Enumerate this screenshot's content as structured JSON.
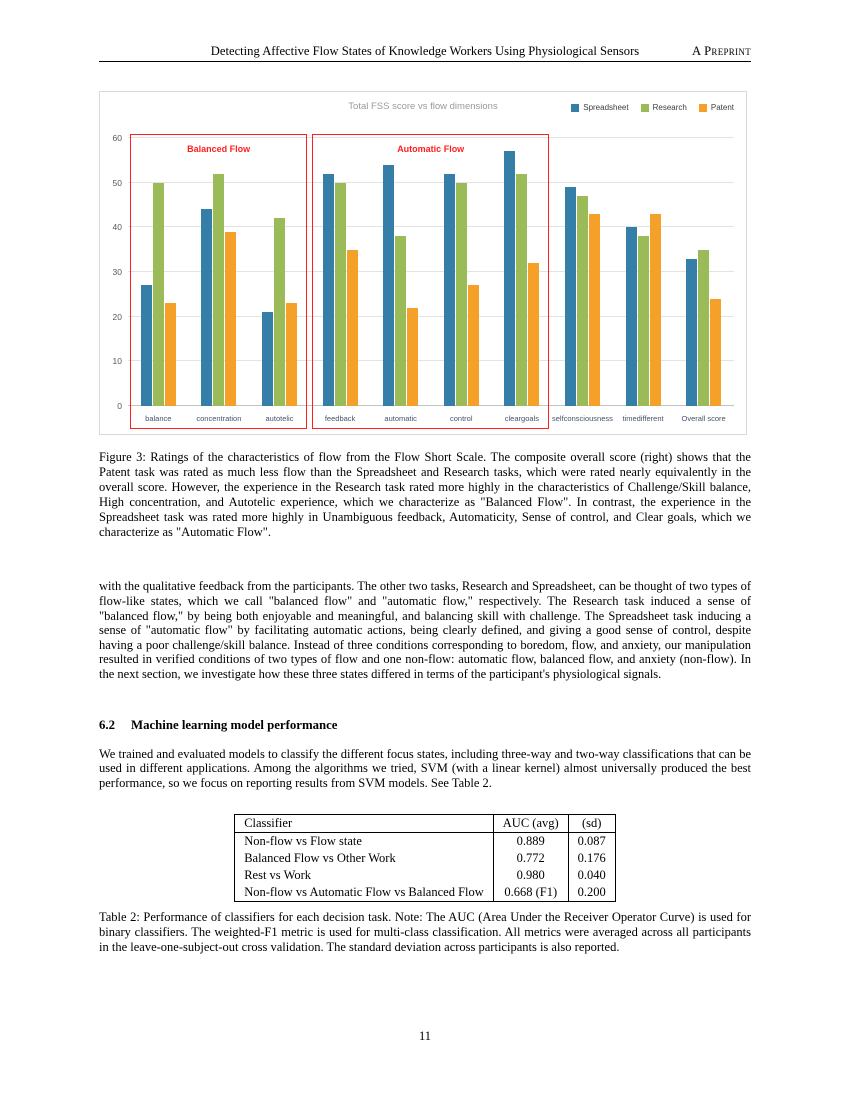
{
  "header": {
    "title": "Detecting Affective Flow States of Knowledge Workers Using Physiological Sensors",
    "tag": "A Preprint"
  },
  "chart_data": {
    "type": "bar",
    "title": "Total FSS score vs flow dimensions",
    "categories": [
      "balance",
      "concentration",
      "autotelic",
      "feedback",
      "automatic",
      "control",
      "cleargoals",
      "selfconsciousness",
      "timedifferent",
      "Overall score"
    ],
    "series": [
      {
        "name": "Spreadsheet",
        "color": "#357ea8",
        "values": [
          27,
          44,
          21,
          52,
          54,
          52,
          57,
          49,
          40,
          33
        ]
      },
      {
        "name": "Research",
        "color": "#9bbb59",
        "values": [
          50,
          52,
          42,
          50,
          38,
          50,
          52,
          47,
          38,
          35
        ]
      },
      {
        "name": "Patent",
        "color": "#f5a028",
        "values": [
          23,
          39,
          23,
          35,
          22,
          27,
          32,
          43,
          43,
          24
        ]
      }
    ],
    "ylim": [
      0,
      60
    ],
    "yticks": [
      0,
      10,
      20,
      30,
      40,
      50,
      60
    ],
    "grid": true,
    "legend_position": "top-right",
    "annotations": [
      {
        "label": "Balanced Flow",
        "color": "#ff1f1f",
        "group_start": 0,
        "group_end": 2
      },
      {
        "label": "Automatic Flow",
        "color": "#ff1f1f",
        "group_start": 3,
        "group_end": 6
      }
    ]
  },
  "figure3_caption": "Figure 3: Ratings of the characteristics of flow from the Flow Short Scale. The composite overall score (right) shows that the Patent task was rated as much less flow than the Spreadsheet and Research tasks, which were rated nearly equivalently in the overall score. However, the experience in the Research task rated more highly in the characteristics of Challenge/Skill balance, High concentration, and Autotelic experience, which we characterize as \"Balanced Flow\". In contrast, the experience in the Spreadsheet task was rated more highly in Unambiguous feedback, Automaticity, Sense of control, and Clear goals, which we characterize as \"Automatic Flow\".",
  "paragraph_1": "with the qualitative feedback from the participants. The other two tasks, Research and Spreadsheet, can be thought of two types of flow-like states, which we call \"balanced flow\" and \"automatic flow,\" respectively. The Research task induced a sense of \"balanced flow,\" by being both enjoyable and meaningful, and balancing skill with challenge. The Spreadsheet task inducing a sense of \"automatic flow\" by facilitating automatic actions, being clearly defined, and giving a good sense of control, despite having a poor challenge/skill balance. Instead of three conditions corresponding to boredom, flow, and anxiety, our manipulation resulted in verified conditions of two types of flow and one non-flow: automatic flow, balanced flow, and anxiety (non-flow). In the next section, we investigate how these three states differed in terms of the participant's physiological signals.",
  "section": {
    "number": "6.2",
    "title": "Machine learning model performance"
  },
  "paragraph_2": "We trained and evaluated models to classify the different focus states, including three-way and two-way classifications that can be used in different applications. Among the algorithms we tried, SVM (with a linear kernel) almost universally produced the best performance, so we focus on reporting results from SVM models. See Table 2.",
  "table2": {
    "headers": [
      "Classifier",
      "AUC (avg)",
      "(sd)"
    ],
    "rows": [
      [
        "Non-flow vs Flow state",
        "0.889",
        "0.087"
      ],
      [
        "Balanced Flow vs Other Work",
        "0.772",
        "0.176"
      ],
      [
        "Rest vs Work",
        "0.980",
        "0.040"
      ],
      [
        "Non-flow vs Automatic Flow vs Balanced Flow",
        "0.668 (F1)",
        "0.200"
      ]
    ]
  },
  "table2_caption": "Table 2: Performance of classifiers for each decision task. Note: The AUC (Area Under the Receiver Operator Curve) is used for binary classifiers. The weighted-F1 metric is used for multi-class classification. All metrics were averaged across all participants in the leave-one-subject-out cross validation. The standard deviation across participants is also reported.",
  "page_number": "11"
}
